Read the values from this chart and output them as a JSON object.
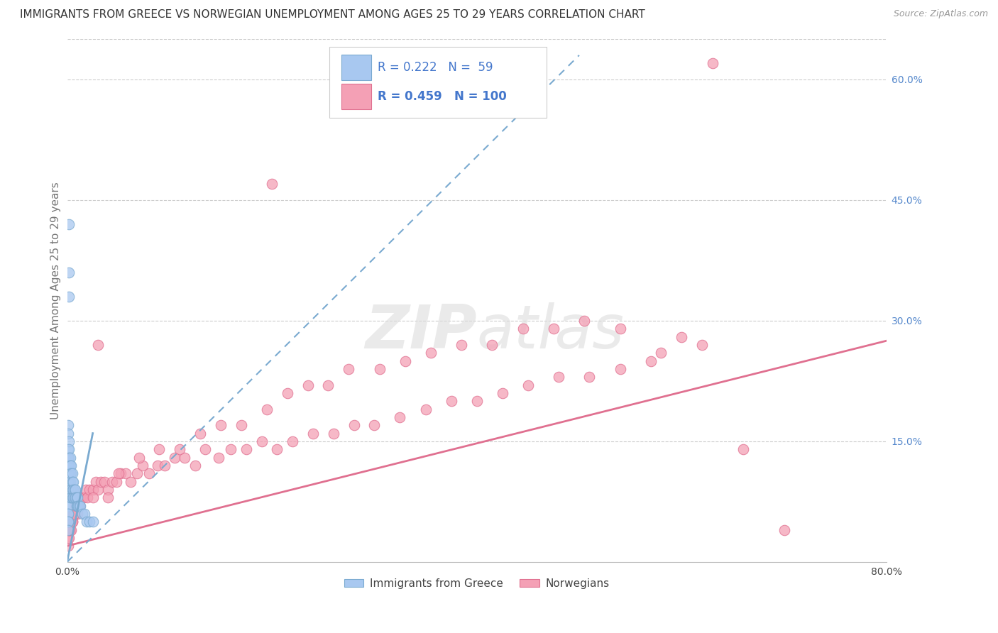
{
  "title": "IMMIGRANTS FROM GREECE VS NORWEGIAN UNEMPLOYMENT AMONG AGES 25 TO 29 YEARS CORRELATION CHART",
  "source": "Source: ZipAtlas.com",
  "ylabel": "Unemployment Among Ages 25 to 29 years",
  "xlim": [
    0.0,
    0.8
  ],
  "ylim": [
    0.0,
    0.65
  ],
  "greece_color": "#a8c8f0",
  "norway_color": "#f4a0b5",
  "greece_edge_color": "#7aaad0",
  "norway_edge_color": "#e07090",
  "trend_greece_color": "#7aaad0",
  "trend_norway_color": "#e07090",
  "right_axis_color": "#5588cc",
  "grid_color": "#cccccc",
  "background_color": "#ffffff",
  "title_color": "#333333",
  "axis_label_color": "#777777",
  "legend_color_blue": "#4477cc",
  "legend_color_pink": "#e07090",
  "greece_R": 0.222,
  "greece_N": 59,
  "norway_R": 0.459,
  "norway_N": 100,
  "title_fontsize": 11,
  "ylabel_fontsize": 11,
  "tick_fontsize": 10,
  "legend_fontsize": 12,
  "greece_x": [
    0.002,
    0.002,
    0.002,
    0.001,
    0.001,
    0.001,
    0.001,
    0.001,
    0.001,
    0.001,
    0.001,
    0.001,
    0.001,
    0.001,
    0.001,
    0.001,
    0.001,
    0.001,
    0.001,
    0.001,
    0.002,
    0.002,
    0.002,
    0.002,
    0.002,
    0.002,
    0.003,
    0.003,
    0.003,
    0.003,
    0.003,
    0.003,
    0.004,
    0.004,
    0.004,
    0.004,
    0.005,
    0.005,
    0.005,
    0.005,
    0.006,
    0.006,
    0.006,
    0.007,
    0.007,
    0.008,
    0.008,
    0.009,
    0.009,
    0.01,
    0.01,
    0.011,
    0.012,
    0.013,
    0.015,
    0.017,
    0.019,
    0.022,
    0.025
  ],
  "greece_y": [
    0.42,
    0.36,
    0.33,
    0.17,
    0.16,
    0.14,
    0.13,
    0.12,
    0.11,
    0.1,
    0.09,
    0.08,
    0.08,
    0.07,
    0.07,
    0.06,
    0.06,
    0.05,
    0.05,
    0.04,
    0.15,
    0.14,
    0.13,
    0.12,
    0.11,
    0.1,
    0.13,
    0.12,
    0.11,
    0.1,
    0.09,
    0.08,
    0.12,
    0.11,
    0.09,
    0.08,
    0.11,
    0.1,
    0.09,
    0.08,
    0.1,
    0.09,
    0.08,
    0.09,
    0.08,
    0.09,
    0.08,
    0.08,
    0.07,
    0.08,
    0.07,
    0.07,
    0.07,
    0.07,
    0.06,
    0.06,
    0.05,
    0.05,
    0.05
  ],
  "norway_x": [
    0.001,
    0.001,
    0.002,
    0.002,
    0.003,
    0.003,
    0.004,
    0.004,
    0.005,
    0.005,
    0.006,
    0.007,
    0.008,
    0.009,
    0.01,
    0.011,
    0.012,
    0.013,
    0.015,
    0.016,
    0.018,
    0.02,
    0.022,
    0.025,
    0.028,
    0.03,
    0.033,
    0.036,
    0.04,
    0.044,
    0.048,
    0.052,
    0.057,
    0.062,
    0.068,
    0.074,
    0.08,
    0.088,
    0.095,
    0.105,
    0.115,
    0.125,
    0.135,
    0.148,
    0.16,
    0.175,
    0.19,
    0.205,
    0.22,
    0.24,
    0.26,
    0.28,
    0.3,
    0.325,
    0.35,
    0.375,
    0.4,
    0.425,
    0.45,
    0.48,
    0.51,
    0.54,
    0.57,
    0.6,
    0.03,
    0.05,
    0.07,
    0.09,
    0.11,
    0.13,
    0.15,
    0.17,
    0.195,
    0.215,
    0.235,
    0.255,
    0.275,
    0.305,
    0.33,
    0.355,
    0.385,
    0.415,
    0.445,
    0.475,
    0.505,
    0.54,
    0.58,
    0.62,
    0.66,
    0.7,
    0.002,
    0.003,
    0.005,
    0.007,
    0.009,
    0.012,
    0.025,
    0.04,
    0.2,
    0.63
  ],
  "norway_y": [
    0.02,
    0.03,
    0.03,
    0.04,
    0.04,
    0.05,
    0.04,
    0.05,
    0.05,
    0.06,
    0.06,
    0.06,
    0.07,
    0.07,
    0.06,
    0.07,
    0.07,
    0.08,
    0.08,
    0.08,
    0.09,
    0.08,
    0.09,
    0.09,
    0.1,
    0.09,
    0.1,
    0.1,
    0.09,
    0.1,
    0.1,
    0.11,
    0.11,
    0.1,
    0.11,
    0.12,
    0.11,
    0.12,
    0.12,
    0.13,
    0.13,
    0.12,
    0.14,
    0.13,
    0.14,
    0.14,
    0.15,
    0.14,
    0.15,
    0.16,
    0.16,
    0.17,
    0.17,
    0.18,
    0.19,
    0.2,
    0.2,
    0.21,
    0.22,
    0.23,
    0.23,
    0.24,
    0.25,
    0.28,
    0.27,
    0.11,
    0.13,
    0.14,
    0.14,
    0.16,
    0.17,
    0.17,
    0.19,
    0.21,
    0.22,
    0.22,
    0.24,
    0.24,
    0.25,
    0.26,
    0.27,
    0.27,
    0.29,
    0.29,
    0.3,
    0.29,
    0.26,
    0.27,
    0.14,
    0.04,
    0.04,
    0.05,
    0.05,
    0.06,
    0.07,
    0.07,
    0.08,
    0.08,
    0.47,
    0.62
  ]
}
